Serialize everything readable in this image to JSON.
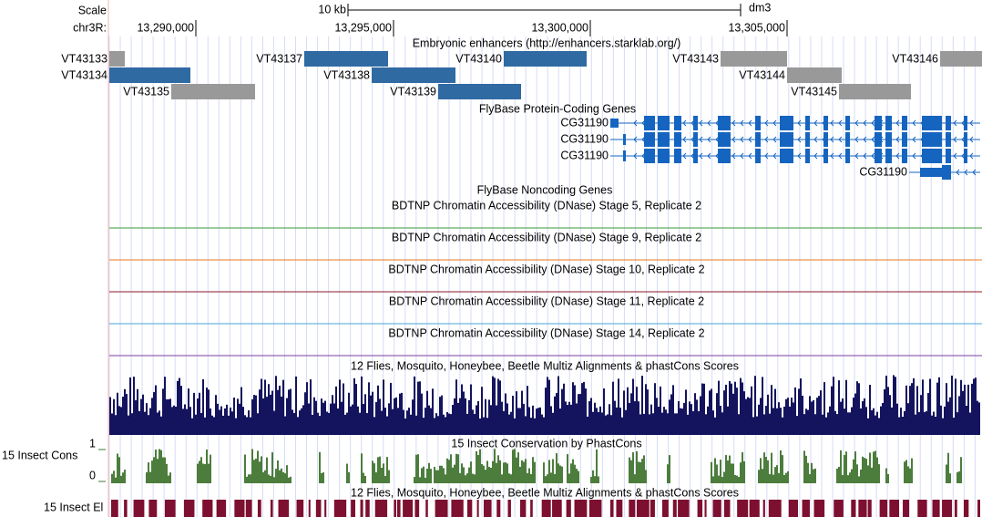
{
  "ruler": {
    "scale_label": "Scale",
    "chrom_label": "chr3R:",
    "scale_bar": "10 kb",
    "assembly": "dm3",
    "positions": [
      "13,290,000",
      "13,295,000",
      "13,300,000",
      "13,305,000"
    ]
  },
  "enhancers": {
    "title": "Embryonic enhancers (http://enhancers.starklab.org/)",
    "items": [
      "VT43133",
      "VT43134",
      "VT43135",
      "VT43137",
      "VT43138",
      "VT43140",
      "VT43139",
      "VT43143",
      "VT43144",
      "VT43146",
      "VT43145"
    ]
  },
  "genes": {
    "title": "FlyBase Protein-Coding Genes",
    "items": [
      "CG31190",
      "CG31190",
      "CG31190",
      "CG31190"
    ]
  },
  "noncoding": {
    "title": "FlyBase Noncoding Genes"
  },
  "dnase": [
    {
      "title": "BDTNP Chromatin Accessibility (DNase) Stage 5, Replicate 2"
    },
    {
      "title": "BDTNP Chromatin Accessibility (DNase) Stage 9, Replicate 2"
    },
    {
      "title": "BDTNP Chromatin Accessibility (DNase) Stage 10, Replicate 2"
    },
    {
      "title": "BDTNP Chromatin Accessibility (DNase) Stage 11, Replicate 2"
    },
    {
      "title": "BDTNP Chromatin Accessibility (DNase) Stage 14, Replicate 2"
    }
  ],
  "multiz": {
    "title": "12 Flies, Mosquito, Honeybee, Beetle Multiz Alignments & phastCons Scores"
  },
  "phastcons": {
    "title": "15 Insect Conservation by PhastCons",
    "label": "15 Insect Cons",
    "max": "1",
    "min": "0"
  },
  "elements": {
    "title": "12 Flies, Mosquito, Honeybee, Beetle Multiz Alignments & phastCons Scores",
    "label": "15 Insect El"
  }
}
